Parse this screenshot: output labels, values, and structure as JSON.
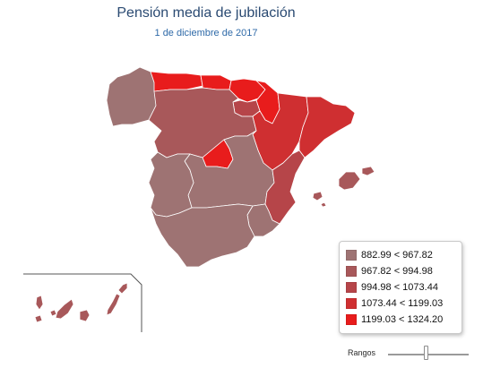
{
  "header": {
    "title": "Pensión media de jubilación",
    "subtitle": "1 de diciembre de 2017"
  },
  "colors": {
    "r1": "#9e7373",
    "r2": "#a8585a",
    "r3": "#b64549",
    "r4": "#cf2f31",
    "r5": "#e81c1c",
    "boundary": "#ffffff",
    "inset_frame": "#555555"
  },
  "legend": {
    "items": [
      {
        "label": "882.99 < 967.82",
        "color": "#9e7373"
      },
      {
        "label": "967.82 < 994.98",
        "color": "#a8585a"
      },
      {
        "label": "994.98 < 1073.44",
        "color": "#b64549"
      },
      {
        "label": "1073.44 < 1199.03",
        "color": "#cf2f31"
      },
      {
        "label": "1199.03 < 1324.20",
        "color": "#e81c1c"
      }
    ]
  },
  "controls": {
    "ranges_label": "Rangos",
    "slider_value": 0.5
  }
}
